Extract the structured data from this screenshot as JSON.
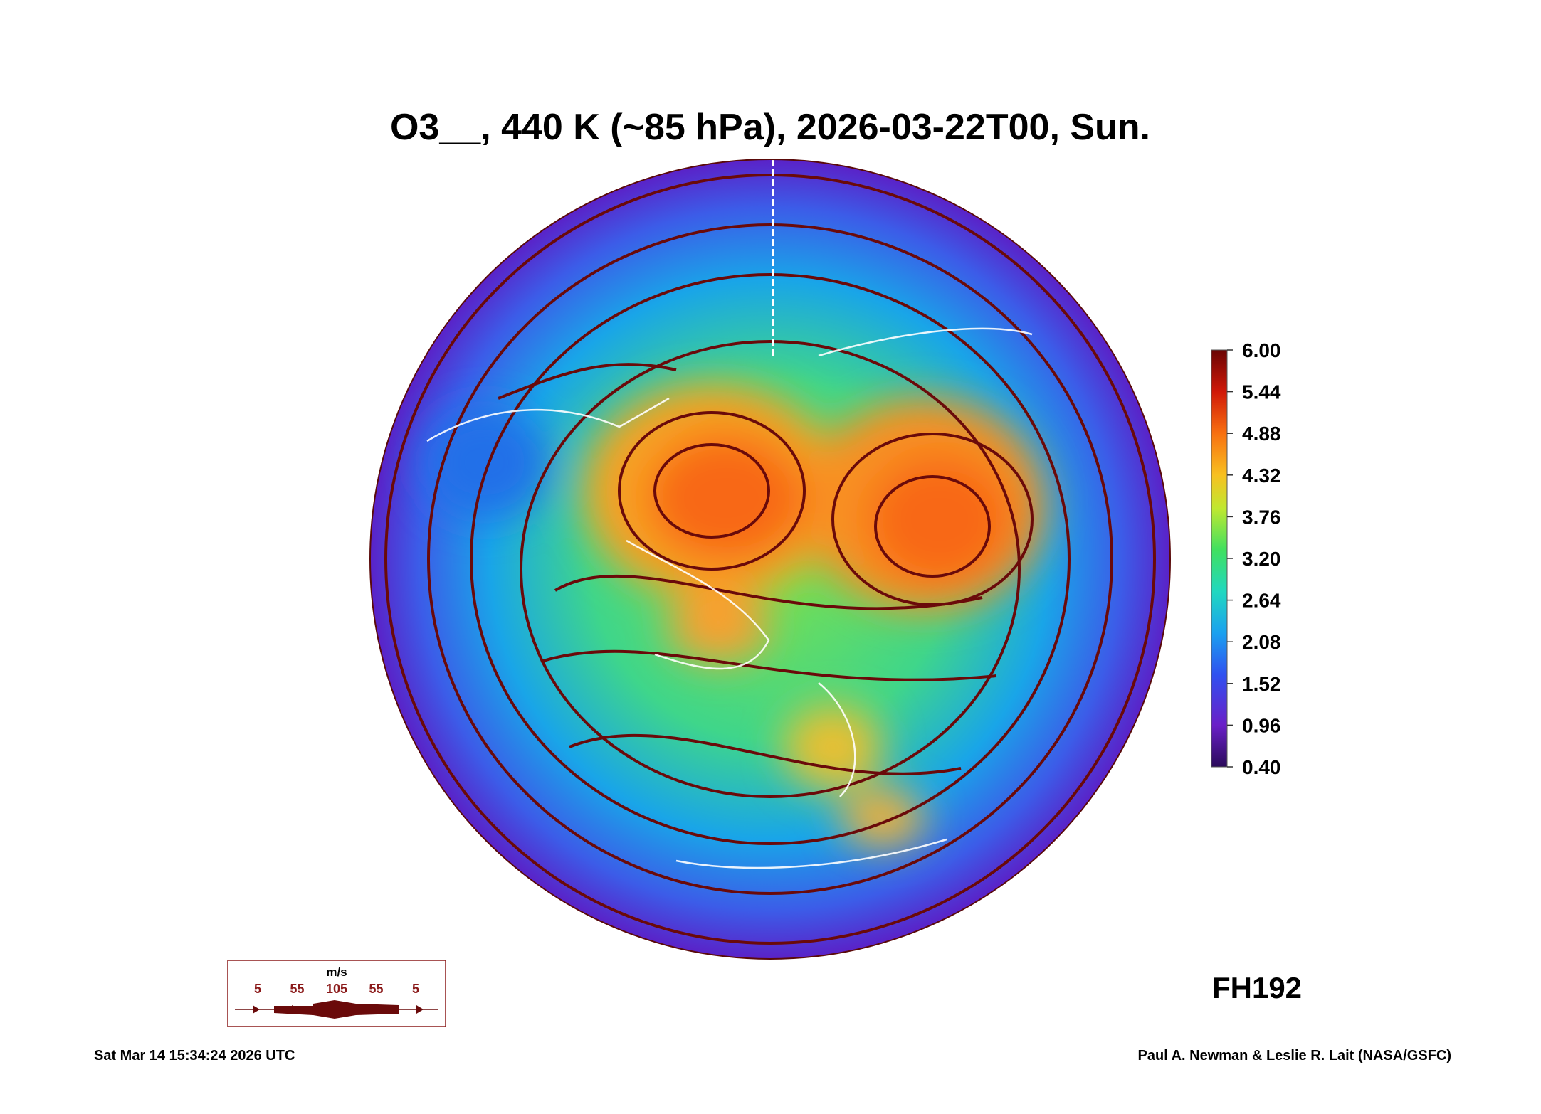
{
  "title": "O3__, 440 K (~85 hPa), 2026-03-22T00, Sun.",
  "colorbar": {
    "lim": [
      0.4,
      6.0
    ],
    "ticks": [
      {
        "value": 6.0,
        "label": "6.00"
      },
      {
        "value": 5.44,
        "label": "5.44"
      },
      {
        "value": 4.88,
        "label": "4.88"
      },
      {
        "value": 4.32,
        "label": "4.32"
      },
      {
        "value": 3.76,
        "label": "3.76"
      },
      {
        "value": 3.2,
        "label": "3.20"
      },
      {
        "value": 2.64,
        "label": "2.64"
      },
      {
        "value": 2.08,
        "label": "2.08"
      },
      {
        "value": 1.52,
        "label": "1.52"
      },
      {
        "value": 0.96,
        "label": "0.96"
      },
      {
        "value": 0.4,
        "label": "0.40"
      }
    ]
  },
  "wind_legend": {
    "unit": "m/s",
    "labels": [
      5,
      55,
      105,
      55,
      5
    ]
  },
  "forecast_hour": "FH192",
  "timestamp": "Sat Mar 14 15:34:24 2026 UTC",
  "credit": "Paul A. Newman & Leslie R. Lait (NASA/GSFC)"
}
